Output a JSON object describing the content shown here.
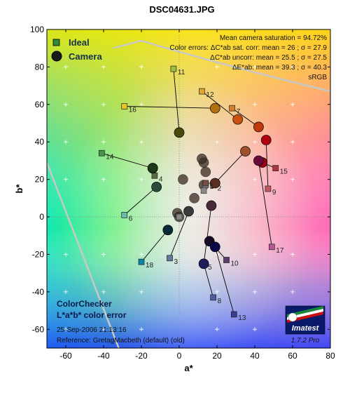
{
  "chart_data": {
    "type": "scatter",
    "title": "DSC04631.JPG",
    "xlabel": "a*",
    "ylabel": "b*",
    "xlim": [
      -70,
      80
    ],
    "ylim": [
      -70,
      100
    ],
    "xticks": [
      -60,
      -40,
      -20,
      0,
      20,
      40,
      60,
      80
    ],
    "yticks": [
      -60,
      -40,
      -20,
      0,
      20,
      40,
      60,
      80,
      100
    ],
    "legend": {
      "position": "top-left",
      "entries": [
        {
          "label": "Ideal",
          "marker": "square"
        },
        {
          "label": "Camera",
          "marker": "circle"
        }
      ]
    },
    "stats": {
      "line1": "Mean camera saturation = 94.72%",
      "line2": "Color errors:  ΔC*ab sat. corr:  mean = 26 ;  σ = 27.9",
      "line3": "ΔC*ab uncorr:  mean = 25.5 ;  σ = 27.5",
      "line4": "ΔE*ab:  mean = 39.3 ;  σ = 40.3",
      "line5": "sRGB"
    },
    "annotations": {
      "name": "ColorChecker",
      "subtitle": "L*a*b* color error",
      "date": "25-Sep-2006 21:13:16",
      "reference": "Reference: GretagMacbeth (default) (old)"
    },
    "logo": {
      "text": "Imatest",
      "version": "1.7.2  Pro"
    },
    "patches": [
      {
        "id": "1",
        "ideal": [
          14,
          18
        ],
        "camera": [
          19,
          18
        ],
        "ideal_color": "#735244",
        "camera_color": "#5a2d22"
      },
      {
        "id": "2",
        "ideal": [
          18,
          17
        ],
        "camera": [
          35,
          35
        ],
        "ideal_color": "#c29682",
        "camera_color": "#a0522d"
      },
      {
        "id": "3",
        "ideal": [
          -5,
          -22
        ],
        "camera": [
          5,
          3
        ],
        "ideal_color": "#627a9d",
        "camera_color": "#3a3a3a"
      },
      {
        "id": "4",
        "ideal": [
          -13,
          22
        ],
        "camera": [
          -14,
          26
        ],
        "ideal_color": "#576c43",
        "camera_color": "#2a3a1a"
      },
      {
        "id": "5",
        "ideal": [
          13,
          -25
        ],
        "camera": [
          17,
          6
        ],
        "ideal_color": "#8580b1",
        "camera_color": "#4a2a3a"
      },
      {
        "id": "6",
        "ideal": [
          -29,
          1
        ],
        "camera": [
          -12,
          16
        ],
        "ideal_color": "#67bdaa",
        "camera_color": "#2a4a3a"
      },
      {
        "id": "7",
        "ideal": [
          28,
          58
        ],
        "camera": [
          42,
          48
        ],
        "ideal_color": "#d67e2c",
        "camera_color": "#c0390c"
      },
      {
        "id": "8",
        "ideal": [
          18,
          -43
        ],
        "camera": [
          13,
          -25
        ],
        "ideal_color": "#505ba6",
        "camera_color": "#1c1c5a"
      },
      {
        "id": "9",
        "ideal": [
          47,
          15
        ],
        "camera": [
          46,
          41
        ],
        "ideal_color": "#c15a63",
        "camera_color": "#b00010"
      },
      {
        "id": "10",
        "ideal": [
          25,
          -23
        ],
        "camera": [
          16,
          -13
        ],
        "ideal_color": "#5e3c6c",
        "camera_color": "#1a0a2a"
      },
      {
        "id": "11",
        "ideal": [
          -3,
          79
        ],
        "camera": [
          0,
          45
        ],
        "ideal_color": "#9dbc40",
        "camera_color": "#4a4a0a"
      },
      {
        "id": "12",
        "ideal": [
          12,
          67
        ],
        "camera": [
          31,
          52
        ],
        "ideal_color": "#e0a32e",
        "camera_color": "#c85010"
      },
      {
        "id": "13",
        "ideal": [
          29,
          -52
        ],
        "camera": [
          19,
          -16
        ],
        "ideal_color": "#383d96",
        "camera_color": "#0a0a4a"
      },
      {
        "id": "14",
        "ideal": [
          -41,
          34
        ],
        "camera": [
          -14,
          26
        ],
        "ideal_color": "#469449",
        "camera_color": "#1a3a1a"
      },
      {
        "id": "15",
        "ideal": [
          51,
          26
        ],
        "camera": [
          44,
          29
        ],
        "ideal_color": "#af363c",
        "camera_color": "#9a0010"
      },
      {
        "id": "16",
        "ideal": [
          -29,
          59
        ],
        "camera": [
          19,
          58
        ],
        "ideal_color": "#e7c71f",
        "camera_color": "#b07010"
      },
      {
        "id": "17",
        "ideal": [
          49,
          -16
        ],
        "camera": [
          42,
          30
        ],
        "ideal_color": "#bb5695",
        "camera_color": "#6a0a3a"
      },
      {
        "id": "18",
        "ideal": [
          -20,
          -24
        ],
        "camera": [
          -6,
          -7
        ],
        "ideal_color": "#0885a1",
        "camera_color": "#0a2a3a"
      }
    ],
    "neutrals_camera": [
      [
        13,
        29
      ],
      [
        14,
        24
      ],
      [
        12,
        31
      ],
      [
        2,
        20
      ],
      [
        8,
        10
      ],
      [
        -1,
        2
      ],
      [
        0,
        0
      ],
      [
        13,
        17
      ]
    ],
    "neutrals_ideal": [
      [
        14,
        17
      ],
      [
        13,
        14
      ],
      [
        0,
        0
      ]
    ]
  }
}
